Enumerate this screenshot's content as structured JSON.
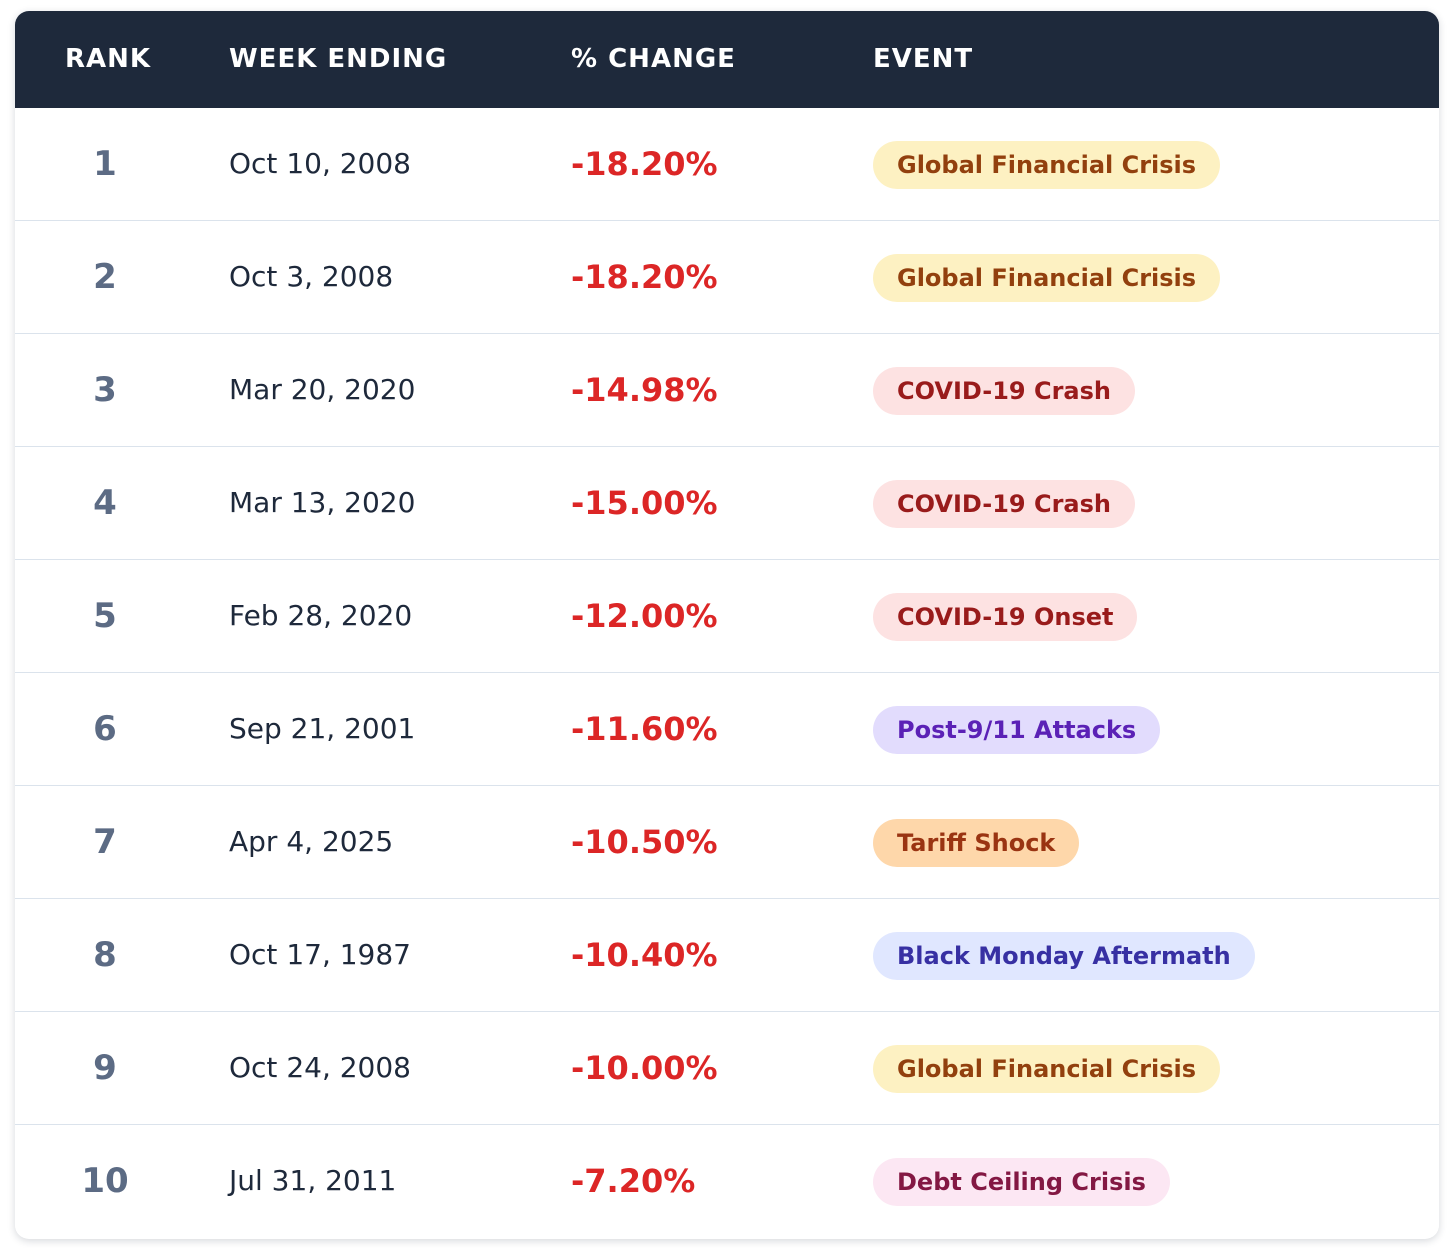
{
  "chart_data": {
    "type": "table",
    "columns": [
      "RANK",
      "WEEK ENDING",
      "% CHANGE",
      "EVENT"
    ],
    "rows": [
      {
        "rank": "1",
        "week_ending": "Oct 10, 2008",
        "change": "-18.20%",
        "change_value": -18.2,
        "event": "Global Financial Crisis",
        "badge_bg": "#fdf1c2",
        "badge_fg": "#92400e"
      },
      {
        "rank": "2",
        "week_ending": "Oct 3, 2008",
        "change": "-18.20%",
        "change_value": -18.2,
        "event": "Global Financial Crisis",
        "badge_bg": "#fdf1c2",
        "badge_fg": "#92400e"
      },
      {
        "rank": "3",
        "week_ending": "Mar 20, 2020",
        "change": "-14.98%",
        "change_value": -14.98,
        "event": "COVID-19 Crash",
        "badge_bg": "#fde2e2",
        "badge_fg": "#991b1b"
      },
      {
        "rank": "4",
        "week_ending": "Mar 13, 2020",
        "change": "-15.00%",
        "change_value": -15.0,
        "event": "COVID-19 Crash",
        "badge_bg": "#fde2e2",
        "badge_fg": "#991b1b"
      },
      {
        "rank": "5",
        "week_ending": "Feb 28, 2020",
        "change": "-12.00%",
        "change_value": -12.0,
        "event": "COVID-19 Onset",
        "badge_bg": "#fde2e2",
        "badge_fg": "#991b1b"
      },
      {
        "rank": "6",
        "week_ending": "Sep 21, 2001",
        "change": "-11.60%",
        "change_value": -11.6,
        "event": "Post-9/11 Attacks",
        "badge_bg": "#e2dcfd",
        "badge_fg": "#5b21b6"
      },
      {
        "rank": "7",
        "week_ending": "Apr 4, 2025",
        "change": "-10.50%",
        "change_value": -10.5,
        "event": "Tariff Shock",
        "badge_bg": "#fed7aa",
        "badge_fg": "#9a3412"
      },
      {
        "rank": "8",
        "week_ending": "Oct 17, 1987",
        "change": "-10.40%",
        "change_value": -10.4,
        "event": "Black Monday Aftermath",
        "badge_bg": "#e0e7ff",
        "badge_fg": "#3730a3"
      },
      {
        "rank": "9",
        "week_ending": "Oct 24, 2008",
        "change": "-10.00%",
        "change_value": -10.0,
        "event": "Global Financial Crisis",
        "badge_bg": "#fdf1c2",
        "badge_fg": "#92400e"
      },
      {
        "rank": "10",
        "week_ending": "Jul 31, 2011",
        "change": "-7.20%",
        "change_value": -7.2,
        "event": "Debt Ceiling Crisis",
        "badge_bg": "#fce7f3",
        "badge_fg": "#831843"
      }
    ]
  },
  "colors": {
    "header_bg": "#1e293b",
    "header_text": "#ffffff",
    "rank_text": "#5c6b84",
    "date_text": "#1e293b",
    "negative_change": "#dc2626",
    "row_divider": "#dbe3ec"
  }
}
